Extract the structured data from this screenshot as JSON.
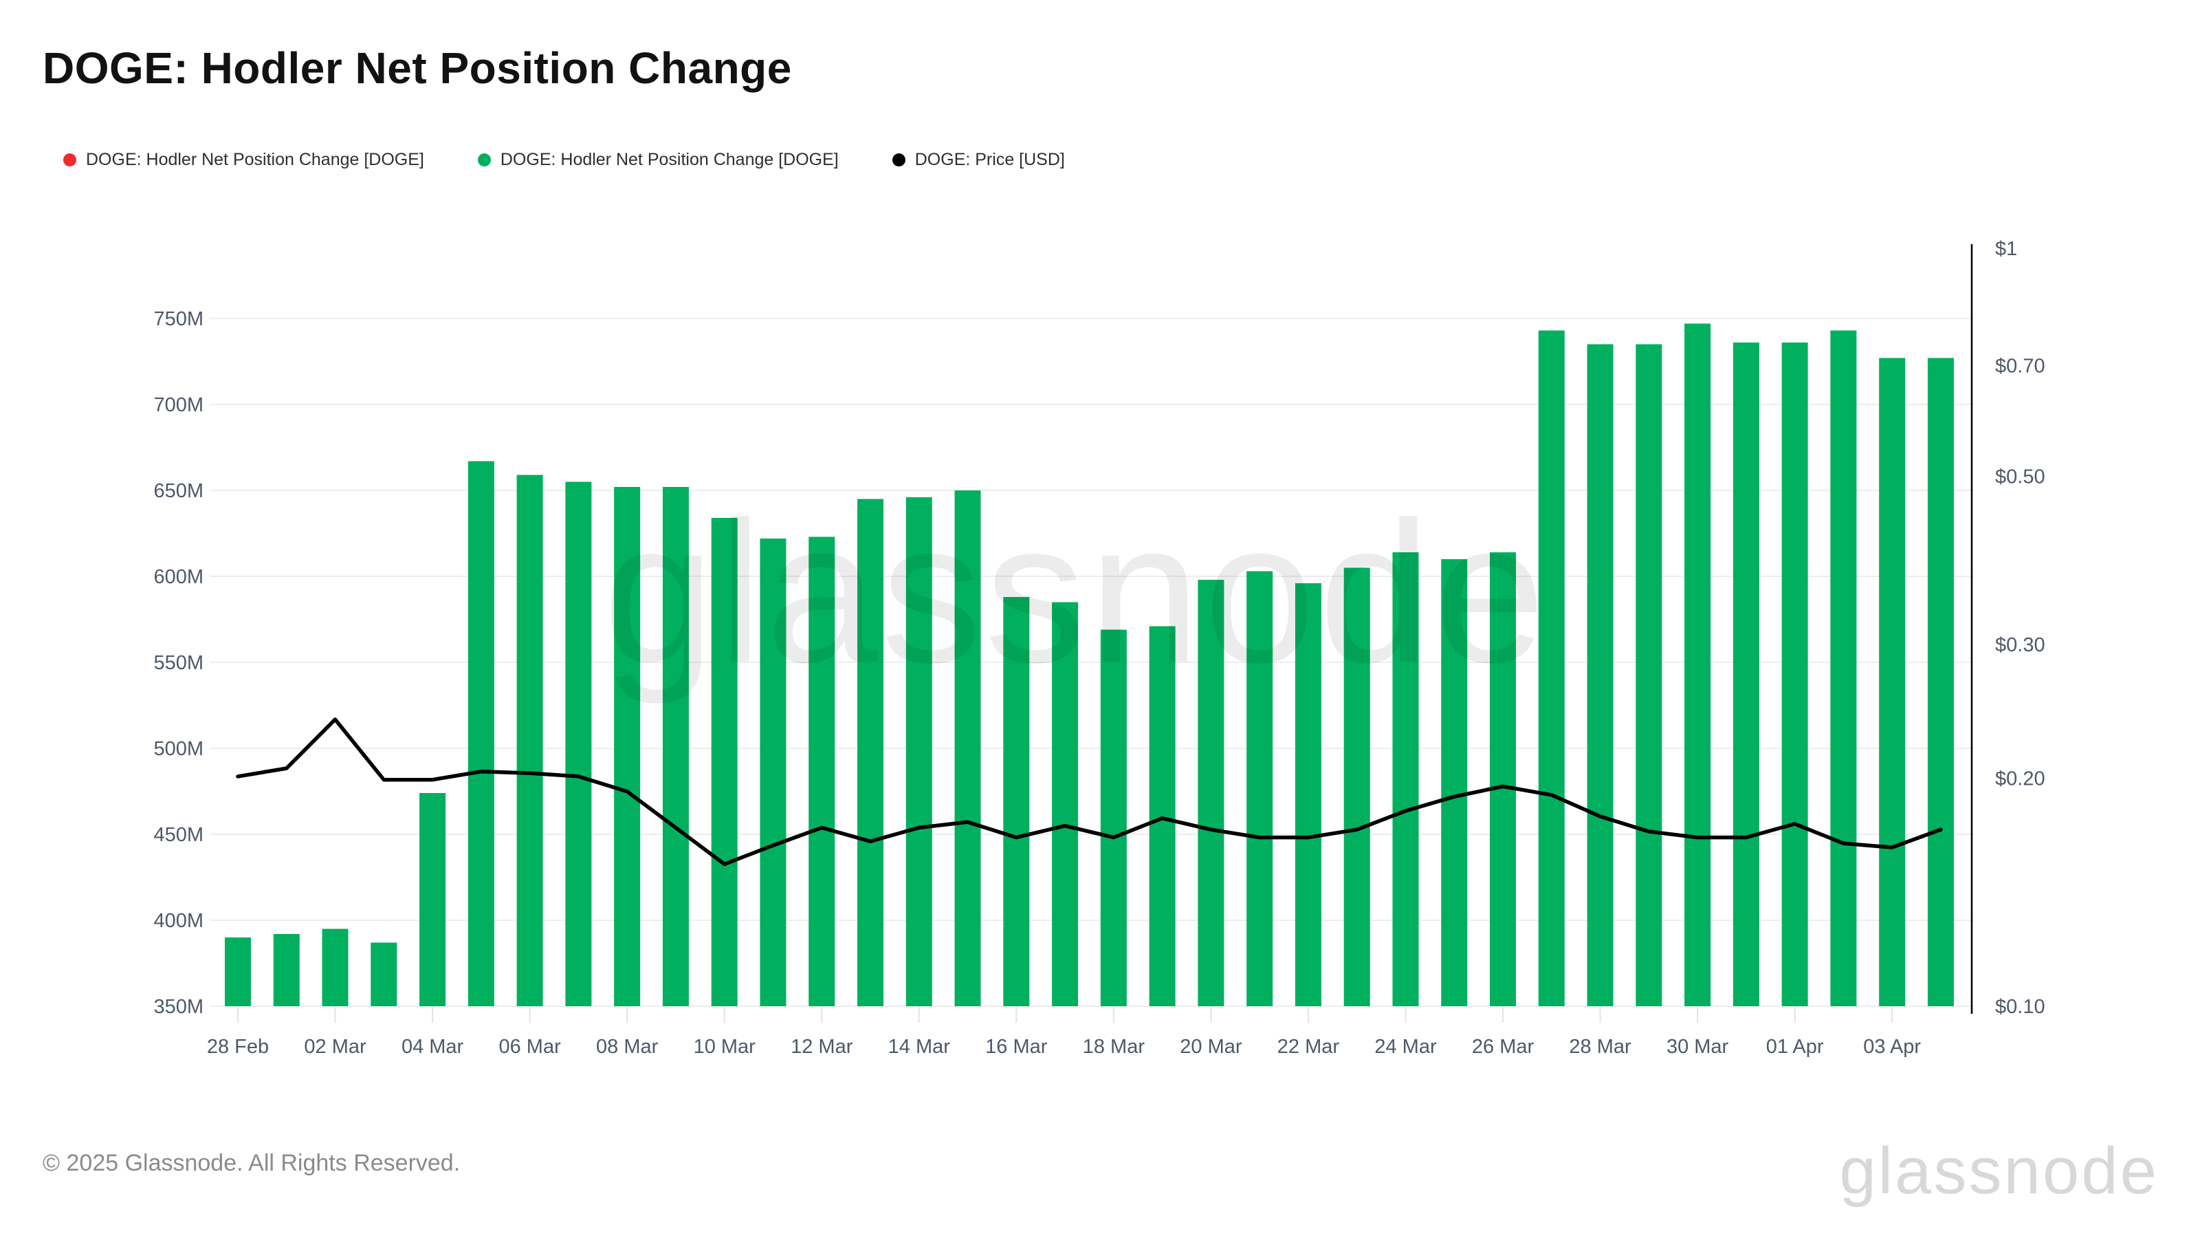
{
  "page": {
    "title": "DOGE: Hodler Net Position Change"
  },
  "legend": {
    "items": [
      {
        "label": "DOGE: Hodler Net Position Change [DOGE]",
        "color": "#ee2b2f",
        "marker": "dot"
      },
      {
        "label": "DOGE: Hodler Net Position Change [DOGE]",
        "color": "#00b05e",
        "marker": "dot"
      },
      {
        "label": "DOGE: Price [USD]",
        "color": "#000000",
        "marker": "dot"
      }
    ]
  },
  "watermark": {
    "text": "glassnode"
  },
  "footer": {
    "copyright": "© 2025 Glassnode. All Rights Reserved.",
    "logo_text": "glassnode"
  },
  "chart_data": {
    "type": "bar",
    "title": "DOGE: Hodler Net Position Change",
    "categories": [
      "28 Feb",
      "01 Mar",
      "02 Mar",
      "03 Mar",
      "04 Mar",
      "05 Mar",
      "06 Mar",
      "07 Mar",
      "08 Mar",
      "09 Mar",
      "10 Mar",
      "11 Mar",
      "12 Mar",
      "13 Mar",
      "14 Mar",
      "15 Mar",
      "16 Mar",
      "17 Mar",
      "18 Mar",
      "19 Mar",
      "20 Mar",
      "21 Mar",
      "22 Mar",
      "23 Mar",
      "24 Mar",
      "25 Mar",
      "26 Mar",
      "27 Mar",
      "28 Mar",
      "29 Mar",
      "30 Mar",
      "31 Mar",
      "01 Apr",
      "02 Apr",
      "03 Apr",
      "04 Apr"
    ],
    "series": [
      {
        "name": "DOGE: Hodler Net Position Change [DOGE]",
        "type": "bar",
        "color": "#00b05e",
        "unit": "DOGE (millions)",
        "axis": "left",
        "values": [
          390,
          392,
          395,
          387,
          474,
          667,
          659,
          655,
          652,
          652,
          634,
          622,
          623,
          645,
          646,
          650,
          588,
          585,
          569,
          571,
          598,
          603,
          596,
          605,
          614,
          610,
          614,
          743,
          735,
          735,
          747,
          736,
          736,
          743,
          727,
          727
        ]
      },
      {
        "name": "DOGE: Price [USD]",
        "type": "line",
        "color": "#000000",
        "unit": "USD",
        "axis": "right",
        "values": [
          0.201,
          0.206,
          0.239,
          0.199,
          0.199,
          0.204,
          0.203,
          0.201,
          0.192,
          0.172,
          0.154,
          0.163,
          0.172,
          0.165,
          0.172,
          0.175,
          0.167,
          0.173,
          0.167,
          0.177,
          0.171,
          0.167,
          0.167,
          0.171,
          0.181,
          0.189,
          0.195,
          0.19,
          0.178,
          0.17,
          0.167,
          0.167,
          0.174,
          0.164,
          0.162,
          0.171
        ]
      }
    ],
    "left_axis": {
      "min": 350,
      "max": 750,
      "unit": "M",
      "grid": true,
      "ticks": [
        {
          "label": "750M",
          "value": 750
        },
        {
          "label": "700M",
          "value": 700
        },
        {
          "label": "650M",
          "value": 650
        },
        {
          "label": "600M",
          "value": 600
        },
        {
          "label": "550M",
          "value": 550
        },
        {
          "label": "500M",
          "value": 500
        },
        {
          "label": "450M",
          "value": 450
        },
        {
          "label": "400M",
          "value": 400
        },
        {
          "label": "350M",
          "value": 350
        }
      ]
    },
    "right_axis": {
      "scale": "log",
      "base": 0.1,
      "unit": "USD",
      "ticks": [
        {
          "label": "$1",
          "value": 1.0
        },
        {
          "label": "$0.70",
          "value": 0.7
        },
        {
          "label": "$0.50",
          "value": 0.5
        },
        {
          "label": "$0.30",
          "value": 0.3
        },
        {
          "label": "$0.20",
          "value": 0.2
        },
        {
          "label": "$0.10",
          "value": 0.1
        }
      ]
    },
    "x_axis": {
      "tick_labels": [
        "28 Feb",
        "02 Mar",
        "04 Mar",
        "06 Mar",
        "08 Mar",
        "10 Mar",
        "12 Mar",
        "14 Mar",
        "16 Mar",
        "18 Mar",
        "20 Mar",
        "22 Mar",
        "24 Mar",
        "26 Mar",
        "28 Mar",
        "30 Mar",
        "01 Apr",
        "03 Apr"
      ]
    },
    "legend_position": "top-left",
    "colors": {
      "bar_green": "#00b05e",
      "legend_red": "#ee2b2f",
      "price_black": "#000000",
      "axis_label_gray": "#4f5868",
      "gridline_gray": "#ededed"
    }
  }
}
